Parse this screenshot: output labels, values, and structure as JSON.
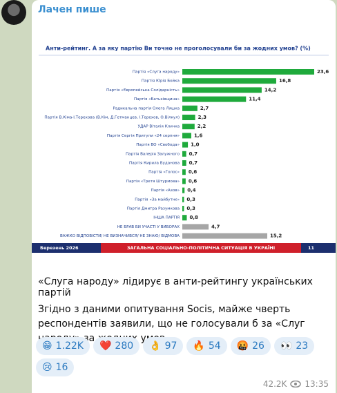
{
  "channel": {
    "name": "Лачен пише"
  },
  "chart_data": {
    "type": "bar",
    "orientation": "horizontal",
    "title": "Анти-рейтинг. А за яку партію Ви точно не проголосували би за жодних умов? (%)",
    "categories": [
      "Партія «Слуга народу»",
      "Партія Юрія Бойка",
      "Партія «Європейська Солідарність»",
      "Партія «Батьківщина»",
      "Радикальна партія Олега Ляшка",
      "Партія В.Кіма-І.Терехова (В.Кім, Д.Гетманцев, І.Терехов, О.Вілкул)",
      "УДАР Віталія Кличка",
      "Партія Сергія Притули «24 серпня»",
      "Партія ВО «Свобода»",
      "Партія Валерія Залужного",
      "Партія Кирила Буданова",
      "Партія «Голос»",
      "Партія «Третя Штурмова»",
      "Партія «Азов»",
      "Партія «За майбутнє»",
      "Партія Дмитра Разумкова",
      "ІНША ПАРТІЯ",
      "НЕ БРАВ БИ УЧАСТІ У ВИБОРАХ",
      "ВАЖКО ВІДПОВІСТИ/ НЕ ВИЗНАЧИВСЯ/ НЕ ЗНАЮ/ ВІДМОВА"
    ],
    "values": [
      23.6,
      16.8,
      14.2,
      11.4,
      2.7,
      2.3,
      2.2,
      1.6,
      1.0,
      0.7,
      0.7,
      0.6,
      0.6,
      0.4,
      0.3,
      0.3,
      0.8,
      4.7,
      15.2
    ],
    "value_labels": [
      "23,6",
      "16,8",
      "14,2",
      "11,4",
      "2,7",
      "2,3",
      "2,2",
      "1,6",
      "1,0",
      "0,7",
      "0,7",
      "0,6",
      "0,6",
      "0,4",
      "0,3",
      "0,3",
      "0,8",
      "4,7",
      "15,2"
    ],
    "colors": [
      "#1faa3c",
      "#1faa3c",
      "#1faa3c",
      "#1faa3c",
      "#1faa3c",
      "#1faa3c",
      "#1faa3c",
      "#1faa3c",
      "#1faa3c",
      "#1faa3c",
      "#1faa3c",
      "#1faa3c",
      "#1faa3c",
      "#1faa3c",
      "#1faa3c",
      "#1faa3c",
      "#1faa3c",
      "#a6a6a6",
      "#a6a6a6"
    ]
  },
  "image_footer": {
    "date": "Березень 2026",
    "text": "ЗАГАЛЬНА СОЦІАЛЬНО-ПОЛІТИЧНА СИТУАЦІЯ В УКРАЇНІ",
    "page": "11"
  },
  "post": {
    "headline": "«Слуга народу» лідирує в анти-рейтингу українських партій",
    "body": "Згідно з даними опитування Socis, майже чверть респондентів заявили, що не голосували б за «Слуг народу» за жодних умов."
  },
  "reactions": [
    {
      "emoji": "😁",
      "count": "1.22K"
    },
    {
      "emoji": "❤️",
      "count": "280"
    },
    {
      "emoji": "👌",
      "count": "97"
    },
    {
      "emoji": "🔥",
      "count": "54"
    },
    {
      "emoji": "🤬",
      "count": "26"
    },
    {
      "emoji": "👀",
      "count": "23"
    },
    {
      "emoji": "😢",
      "count": "16"
    }
  ],
  "meta": {
    "views": "42.2K",
    "time": "13:35"
  }
}
